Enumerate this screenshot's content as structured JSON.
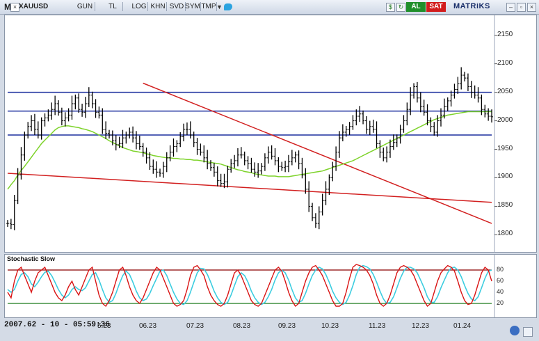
{
  "toolbar": {
    "menu_letter": "M",
    "symbol": "XAUUSD",
    "buttons": [
      "GUN",
      "TL",
      "LOG",
      "KHN",
      "SVD",
      "SYM",
      "TMP"
    ],
    "buy_label": "AL",
    "sell_label": "SAT",
    "brand": "MATRiKS",
    "icons": [
      "close-icon",
      "dropdown-arrow-icon",
      "twitter-icon",
      "dollar-icon",
      "refresh-icon",
      "minimize-icon",
      "restore-icon",
      "close-window-icon"
    ]
  },
  "status": {
    "readout": "2007.62 - 10 - 05:59:36"
  },
  "stochastic": {
    "title": "Stochastic Slow",
    "levels": [
      "80",
      "60",
      "40",
      "20"
    ],
    "upper_color": "#8b0000",
    "lower_color": "#1a7a1a",
    "k_color": "#d91414",
    "d_color": "#3ccde0"
  },
  "colors": {
    "price_bars": "#000000",
    "ma_line": "#7ed32b",
    "horizontal_levels": "#1c2f9e",
    "trendlines": "#d22020"
  },
  "chart_data": {
    "type": "ohlc",
    "x_tick_labels": [
      "5.23",
      "06.23",
      "07.23",
      "08.23",
      "09.23",
      "10.23",
      "11.23",
      "12.23",
      "01.24"
    ],
    "y_tick_labels": [
      "1800",
      "1850",
      "1900",
      "1950",
      "2000",
      "2050",
      "2100",
      "2150"
    ],
    "ylim": [
      1770,
      2185
    ],
    "horizontal_levels": [
      2050,
      2017,
      1975
    ],
    "close": [
      1820,
      1818,
      1860,
      1905,
      1940,
      1975,
      1990,
      2000,
      1985,
      1975,
      2000,
      2005,
      2010,
      2020,
      2030,
      2015,
      2000,
      2005,
      2010,
      2030,
      2040,
      2020,
      2015,
      2030,
      2045,
      2030,
      2015,
      2010,
      1985,
      1978,
      1975,
      1965,
      1958,
      1960,
      1970,
      1975,
      1980,
      1970,
      1960,
      1955,
      1945,
      1935,
      1920,
      1915,
      1910,
      1908,
      1920,
      1935,
      1945,
      1955,
      1960,
      1972,
      1985,
      1985,
      1975,
      1962,
      1950,
      1945,
      1935,
      1925,
      1918,
      1910,
      1895,
      1890,
      1893,
      1915,
      1925,
      1930,
      1940,
      1940,
      1930,
      1925,
      1915,
      1910,
      1912,
      1920,
      1935,
      1945,
      1938,
      1930,
      1920,
      1918,
      1920,
      1928,
      1935,
      1940,
      1925,
      1905,
      1880,
      1850,
      1830,
      1820,
      1840,
      1860,
      1880,
      1900,
      1920,
      1945,
      1970,
      1980,
      1985,
      1990,
      2000,
      2008,
      2012,
      2000,
      1985,
      1990,
      1985,
      1960,
      1945,
      1935,
      1945,
      1955,
      1962,
      1970,
      1985,
      2000,
      2020,
      2045,
      2060,
      2040,
      2025,
      2015,
      2000,
      1990,
      1980,
      2000,
      2010,
      2025,
      2035,
      2045,
      2055,
      2065,
      2080,
      2075,
      2060,
      2050,
      2045,
      2040,
      2020,
      2012,
      2008,
      2007
    ],
    "ma": [
      1880,
      1888,
      1895,
      1905,
      1913,
      1920,
      1928,
      1936,
      1944,
      1952,
      1960,
      1966,
      1972,
      1978,
      1984,
      1988,
      1990,
      1991,
      1991,
      1990,
      1989,
      1988,
      1986,
      1985,
      1983,
      1981,
      1978,
      1975,
      1972,
      1969,
      1965,
      1962,
      1959,
      1956,
      1953,
      1951,
      1949,
      1947,
      1946,
      1945,
      1944,
      1942,
      1941,
      1939,
      1938,
      1937,
      1936,
      1935,
      1935,
      1934,
      1934,
      1933,
      1933,
      1932,
      1932,
      1931,
      1931,
      1930,
      1929,
      1928,
      1927,
      1926,
      1925,
      1924,
      1922,
      1920,
      1918,
      1916,
      1914,
      1913,
      1911,
      1910,
      1909,
      1907,
      1906,
      1905,
      1904,
      1903,
      1903,
      1903,
      1902,
      1902,
      1902,
      1902,
      1903,
      1904,
      1905,
      1906,
      1907,
      1908,
      1909,
      1910,
      1911,
      1912,
      1914,
      1916,
      1918,
      1920,
      1922,
      1924,
      1926,
      1928,
      1930,
      1933,
      1936,
      1939,
      1942,
      1945,
      1948,
      1951,
      1954,
      1957,
      1960,
      1963,
      1966,
      1969,
      1972,
      1975,
      1978,
      1981,
      1984,
      1987,
      1990,
      1993,
      1996,
      1999,
      2002,
      2004,
      2006,
      2008,
      2010,
      2011,
      2012,
      2013,
      2014,
      2015,
      2016,
      2016,
      2016,
      2016,
      2016,
      2016,
      2016,
      2016
    ],
    "trendlines": [
      {
        "from": {
          "index": 40,
          "value": 2066
        },
        "to": {
          "index": 143,
          "value": 1820
        }
      },
      {
        "from": {
          "index": 0,
          "value": 1908
        },
        "to": {
          "index": 143,
          "value": 1857
        }
      }
    ],
    "stoch_k": [
      40,
      30,
      60,
      80,
      85,
      70,
      55,
      40,
      60,
      75,
      80,
      85,
      70,
      55,
      40,
      30,
      25,
      35,
      50,
      60,
      45,
      35,
      50,
      65,
      80,
      85,
      60,
      35,
      20,
      15,
      25,
      40,
      60,
      80,
      85,
      70,
      50,
      35,
      25,
      20,
      30,
      45,
      60,
      75,
      85,
      80,
      65,
      50,
      35,
      20,
      15,
      18,
      25,
      45,
      70,
      85,
      88,
      80,
      70,
      50,
      35,
      25,
      18,
      15,
      20,
      35,
      55,
      75,
      80,
      70,
      55,
      40,
      25,
      18,
      15,
      20,
      35,
      50,
      65,
      80,
      85,
      78,
      60,
      40,
      25,
      15,
      20,
      40,
      60,
      75,
      85,
      88,
      80,
      70,
      55,
      40,
      25,
      15,
      15,
      20,
      40,
      65,
      85,
      90,
      88,
      85,
      80,
      70,
      55,
      35,
      20,
      15,
      20,
      35,
      55,
      75,
      85,
      88,
      85,
      80,
      70,
      55,
      40,
      25,
      15,
      20,
      40,
      60,
      75,
      82,
      88,
      85,
      78,
      60,
      40,
      25,
      18,
      20,
      35,
      55,
      75,
      85,
      80,
      60
    ],
    "stoch_d": [
      45,
      40,
      45,
      60,
      72,
      75,
      68,
      55,
      50,
      58,
      68,
      76,
      78,
      70,
      58,
      45,
      35,
      30,
      35,
      45,
      50,
      45,
      43,
      48,
      60,
      72,
      75,
      62,
      45,
      30,
      22,
      25,
      38,
      55,
      70,
      78,
      72,
      58,
      42,
      30,
      25,
      28,
      38,
      52,
      65,
      78,
      80,
      70,
      55,
      40,
      28,
      20,
      18,
      25,
      40,
      58,
      75,
      83,
      82,
      72,
      58,
      42,
      30,
      22,
      18,
      22,
      35,
      52,
      68,
      75,
      70,
      58,
      42,
      30,
      22,
      18,
      22,
      32,
      45,
      62,
      75,
      80,
      75,
      62,
      45,
      30,
      22,
      25,
      38,
      55,
      70,
      80,
      85,
      82,
      72,
      58,
      42,
      30,
      22,
      18,
      22,
      35,
      52,
      72,
      85,
      88,
      86,
      82,
      72,
      58,
      42,
      28,
      20,
      22,
      32,
      48,
      65,
      78,
      85,
      85,
      82,
      75,
      62,
      48,
      32,
      22,
      22,
      32,
      48,
      62,
      75,
      84,
      85,
      80,
      68,
      52,
      38,
      28,
      25,
      32,
      48,
      65,
      78,
      80
    ]
  }
}
